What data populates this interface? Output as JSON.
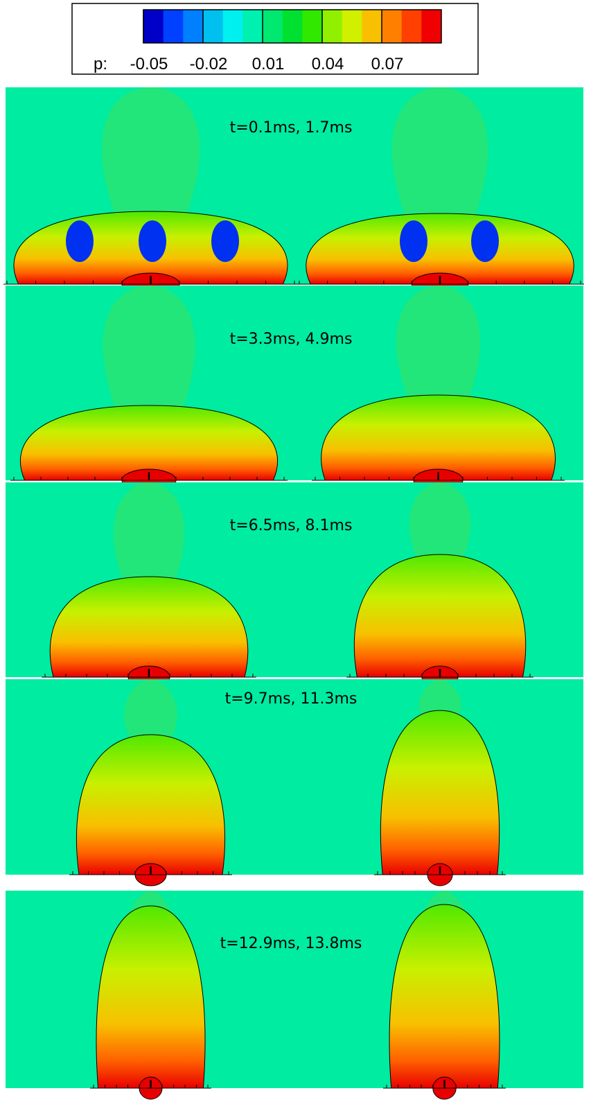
{
  "legend": {
    "variable": "p:",
    "ticks": [
      -0.05,
      -0.02,
      0.01,
      0.04,
      0.07
    ],
    "clim": [
      -0.05,
      0.1
    ],
    "colors": [
      "#0000c8",
      "#0040ff",
      "#0080ff",
      "#00c0f0",
      "#00f0f0",
      "#00f0b0",
      "#00e870",
      "#00e030",
      "#30e800",
      "#90f000",
      "#d0f000",
      "#f8c000",
      "#ff8000",
      "#ff4000",
      "#f00000"
    ]
  },
  "panels": [
    {
      "label": "t=0.1ms, 1.7ms"
    },
    {
      "label": "t=3.3ms, 4.9ms"
    },
    {
      "label": "t=6.5ms, 8.1ms"
    },
    {
      "label": "t=9.7ms, 11.3ms"
    },
    {
      "label": "t=12.9ms, 13.8ms"
    }
  ]
}
